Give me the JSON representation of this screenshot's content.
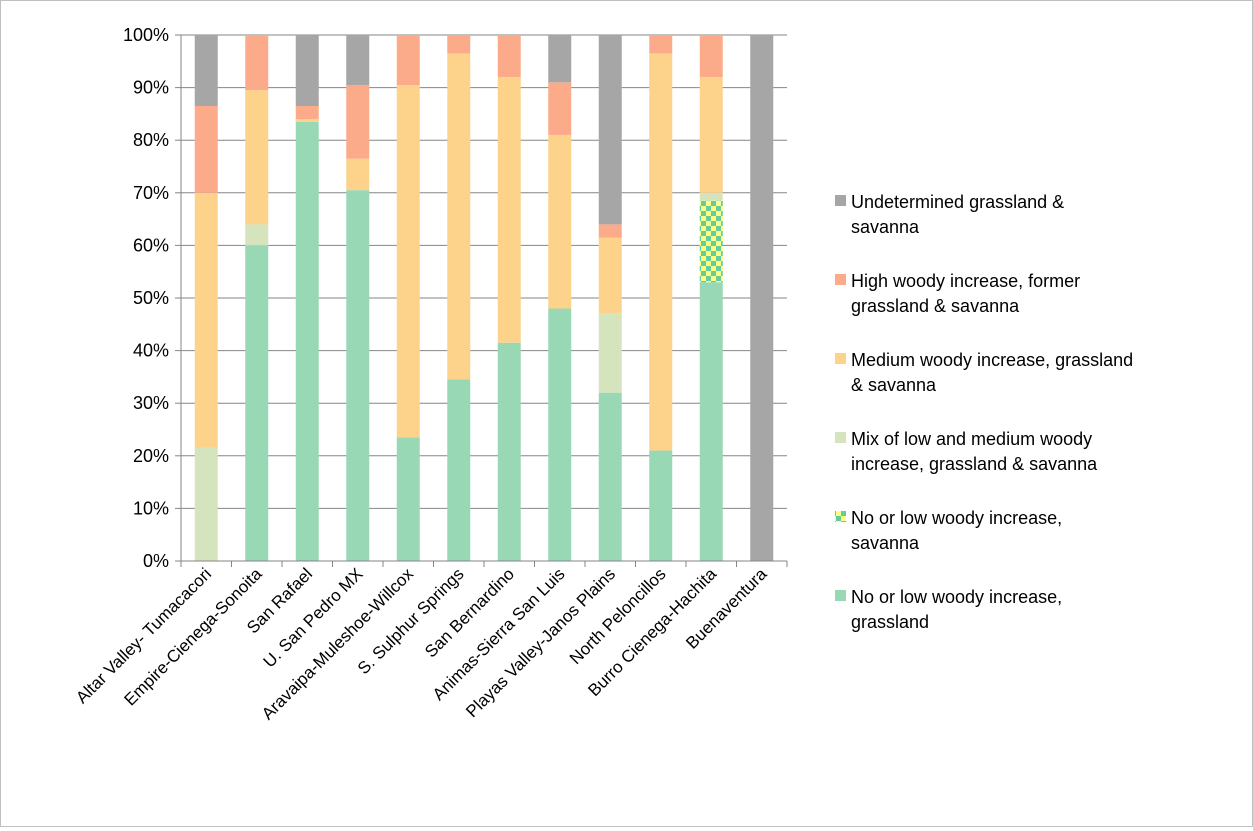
{
  "chart_data": {
    "type": "bar",
    "stacked": true,
    "percent": true,
    "title": "",
    "xlabel": "",
    "ylabel": "",
    "ylim": [
      0,
      100
    ],
    "yticks": [
      "0%",
      "10%",
      "20%",
      "30%",
      "40%",
      "50%",
      "60%",
      "70%",
      "80%",
      "90%",
      "100%"
    ],
    "grid": true,
    "legend_position": "right",
    "categories": [
      "Altar Valley- Tumacacori",
      "Empire-Cienega-Sonoita",
      "San Rafael",
      "U. San Pedro MX",
      "Aravaipa-Muleshoe-Willcox",
      "S. Sulphur Springs",
      "San Bernardino",
      "Animas-Sierra San Luis",
      "Playas Valley-Janos Plains",
      "North Peloncillos",
      "Burro Cienega-Hachita",
      "Buenaventura"
    ],
    "series": [
      {
        "name": "No or low woody increase, grassland",
        "color": "#98d8b5",
        "pattern": "solid",
        "values": [
          0,
          60,
          83.5,
          70.5,
          23.5,
          34.5,
          41.5,
          48,
          32,
          21,
          53,
          0
        ]
      },
      {
        "name": "No or low woody increase, savanna",
        "color": "#66cc99",
        "color2": "#ffff80",
        "pattern": "checker",
        "values": [
          0,
          0,
          0,
          0,
          0,
          0,
          0,
          0,
          0,
          0,
          15.5,
          0
        ]
      },
      {
        "name": "Mix of low and medium woody increase,  grassland & savanna",
        "color": "#d5e4bc",
        "pattern": "solid",
        "values": [
          21.5,
          4,
          0,
          0,
          0,
          0,
          0,
          0,
          15,
          0,
          1.5,
          0
        ]
      },
      {
        "name": "Medium woody increase, grassland & savanna",
        "color": "#fdd38b",
        "pattern": "solid",
        "values": [
          48.5,
          25.5,
          0.5,
          6,
          67,
          62,
          50.5,
          33,
          14.5,
          75.5,
          22,
          0
        ]
      },
      {
        "name": "High woody increase, former grassland & savanna",
        "color": "#fbaa8a",
        "pattern": "solid",
        "values": [
          16.5,
          10.5,
          2.5,
          14,
          9.5,
          3.5,
          8,
          10,
          2.5,
          3.5,
          8,
          0
        ]
      },
      {
        "name": "Undetermined grassland & savanna",
        "color": "#a6a6a6",
        "pattern": "solid",
        "values": [
          13.5,
          0,
          13.5,
          9.5,
          0,
          0,
          0,
          9,
          36,
          0,
          0,
          100
        ]
      }
    ],
    "legend": [
      {
        "series_index": 5,
        "lines": [
          "Undetermined grassland &",
          "savanna"
        ]
      },
      {
        "series_index": 4,
        "lines": [
          "High woody increase, former",
          "grassland & savanna"
        ]
      },
      {
        "series_index": 3,
        "lines": [
          "Medium woody increase, grassland",
          "& savanna"
        ]
      },
      {
        "series_index": 2,
        "lines": [
          "Mix of low and medium woody",
          "increase,  grassland & savanna"
        ]
      },
      {
        "series_index": 1,
        "lines": [
          "No or low woody increase,",
          "savanna"
        ]
      },
      {
        "series_index": 0,
        "lines": [
          "No or low woody increase,",
          "grassland"
        ]
      }
    ]
  }
}
